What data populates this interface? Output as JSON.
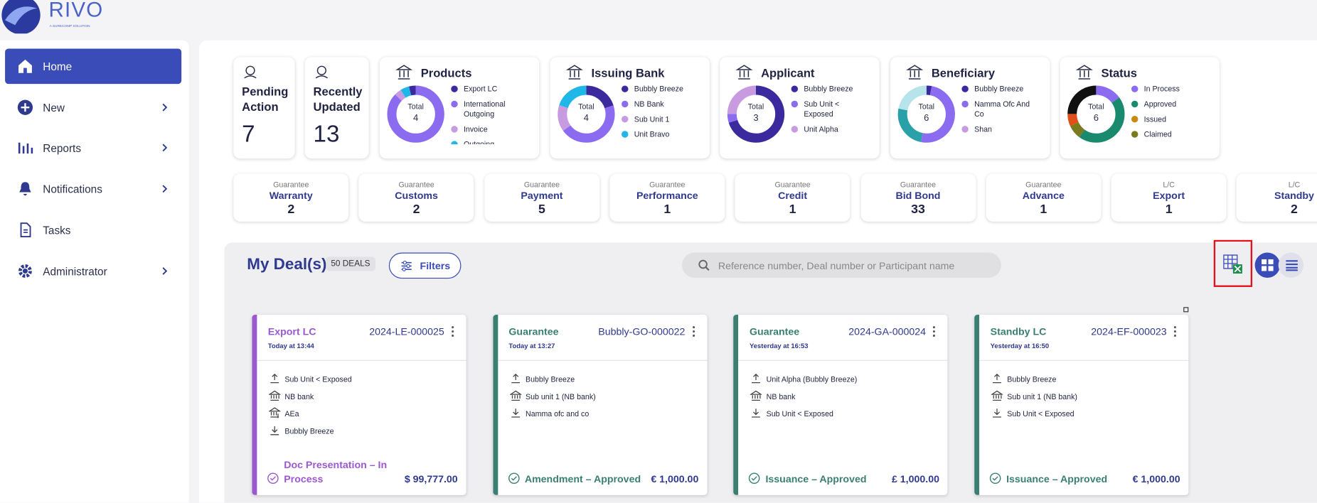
{
  "header": {
    "logo": "RIVO",
    "tagline": "A SURECOMP SOLUTION"
  },
  "sidebar": {
    "items": [
      {
        "label": "Home",
        "active": true
      },
      {
        "label": "New",
        "submenu": true
      },
      {
        "label": "Reports",
        "submenu": true
      },
      {
        "label": "Notifications",
        "submenu": true
      },
      {
        "label": "Tasks"
      },
      {
        "label": "Administrator",
        "submenu": true
      }
    ]
  },
  "summary": [
    {
      "label": "Pending Action",
      "count": 7
    },
    {
      "label": "Recently Updated",
      "count": 13
    }
  ],
  "widgets": [
    {
      "title": "Products",
      "total_label": "Total",
      "total": 4,
      "legend": [
        {
          "label": "Export LC",
          "color": "#3b2a9e"
        },
        {
          "label": "International Outgoing",
          "color": "#8b6cf0"
        },
        {
          "label": "Invoice",
          "color": "#c89be0"
        },
        {
          "label": "Outgoing",
          "color": "#1fb6e8"
        }
      ],
      "segments": [
        {
          "color": "#8b6cf0",
          "value": 87
        },
        {
          "color": "#c89be0",
          "value": 4
        },
        {
          "color": "#1fb6e8",
          "value": 5
        },
        {
          "color": "#3b2a9e",
          "value": 4
        }
      ]
    },
    {
      "title": "Issuing Bank",
      "total_label": "Total",
      "total": 4,
      "legend": [
        {
          "label": "Bubbly Breeze",
          "color": "#3b2a9e"
        },
        {
          "label": "NB Bank",
          "color": "#8b6cf0"
        },
        {
          "label": "Sub Unit 1",
          "color": "#c89be0"
        },
        {
          "label": "Unit Bravo",
          "color": "#1fb6e8"
        }
      ],
      "segments": [
        {
          "color": "#3b2a9e",
          "value": 20
        },
        {
          "color": "#8b6cf0",
          "value": 45
        },
        {
          "color": "#c89be0",
          "value": 15
        },
        {
          "color": "#1fb6e8",
          "value": 20
        }
      ]
    },
    {
      "title": "Applicant",
      "total_label": "Total",
      "total": 3,
      "legend": [
        {
          "label": "Bubbly Breeze",
          "color": "#3b2a9e"
        },
        {
          "label": "Sub Unit < Exposed",
          "color": "#8b6cf0"
        },
        {
          "label": "Unit Alpha",
          "color": "#c89be0"
        }
      ],
      "segments": [
        {
          "color": "#3b2a9e",
          "value": 70
        },
        {
          "color": "#8b6cf0",
          "value": 5
        },
        {
          "color": "#c89be0",
          "value": 25
        }
      ]
    },
    {
      "title": "Beneficiary",
      "total_label": "Total",
      "total": 6,
      "legend": [
        {
          "label": "Bubbly Breeze",
          "color": "#3b2a9e"
        },
        {
          "label": "Namma Ofc And Co",
          "color": "#8b6cf0"
        },
        {
          "label": "Shan",
          "color": "#c89be0"
        }
      ],
      "segments": [
        {
          "color": "#3b2a9e",
          "value": 3
        },
        {
          "color": "#8b6cf0",
          "value": 50
        },
        {
          "color": "#2aa0a8",
          "value": 25
        },
        {
          "color": "#b7e3ea",
          "value": 22
        }
      ]
    },
    {
      "title": "Status",
      "total_label": "Total",
      "total": 6,
      "legend": [
        {
          "label": "In Process",
          "color": "#8b6cf0"
        },
        {
          "label": "Approved",
          "color": "#1a8a6e"
        },
        {
          "label": "Issued",
          "color": "#c98a12"
        },
        {
          "label": "Claimed",
          "color": "#7a7a1e"
        }
      ],
      "segments": [
        {
          "color": "#8b6cf0",
          "value": 15
        },
        {
          "color": "#1a8a6e",
          "value": 45
        },
        {
          "color": "#7a7a1e",
          "value": 8
        },
        {
          "color": "#e0501a",
          "value": 7
        },
        {
          "color": "#111111",
          "value": 25
        }
      ]
    }
  ],
  "categories": [
    {
      "type": "Guarantee",
      "name": "Warranty",
      "count": 2
    },
    {
      "type": "Guarantee",
      "name": "Customs",
      "count": 2
    },
    {
      "type": "Guarantee",
      "name": "Payment",
      "count": 5
    },
    {
      "type": "Guarantee",
      "name": "Performance",
      "count": 1
    },
    {
      "type": "Guarantee",
      "name": "Credit",
      "count": 1
    },
    {
      "type": "Guarantee",
      "name": "Bid Bond",
      "count": 33
    },
    {
      "type": "Guarantee",
      "name": "Advance",
      "count": 1
    },
    {
      "type": "L/C",
      "name": "Export",
      "count": 1
    },
    {
      "type": "L/C",
      "name": "Standby",
      "count": 2
    }
  ],
  "deals_toolbar": {
    "title": "My Deal(s)",
    "badge": "50 DEALS",
    "filters": "Filters",
    "search_placeholder": "Reference number, Deal number or Participant name"
  },
  "deals": [
    {
      "type": "Export LC",
      "ref": "2024-LE-000025",
      "time": "Today at 13:44",
      "parties": [
        "Sub Unit < Exposed",
        "NB bank",
        "AEa",
        "Bubbly Breeze"
      ],
      "status": "Doc Presentation – In Process",
      "amount": "$ 99,777.00",
      "accent": "#9b59d0"
    },
    {
      "type": "Guarantee",
      "ref": "Bubbly-GO-000022",
      "time": "Today at 13:27",
      "parties": [
        "Bubbly Breeze",
        "Sub unit 1 (NB bank)",
        "Namma ofc and co"
      ],
      "status": "Amendment – Approved",
      "amount": "€ 1,000.00",
      "accent": "#3b7f73"
    },
    {
      "type": "Guarantee",
      "ref": "2024-GA-000024",
      "time": "Yesterday at 16:53",
      "parties": [
        "Unit Alpha (Bubbly Breeze)",
        "NB bank",
        "Sub Unit < Exposed"
      ],
      "status": "Issuance – Approved",
      "amount": "£ 1,000.00",
      "accent": "#3b7f73"
    },
    {
      "type": "Standby LC",
      "ref": "2024-EF-000023",
      "time": "Yesterday at 16:50",
      "parties": [
        "Bubbly Breeze",
        "Sub unit 1 (NB bank)",
        "Sub Unit < Exposed"
      ],
      "status": "Issuance – Approved",
      "amount": "€ 1,000.00",
      "accent": "#3b7f73"
    }
  ]
}
